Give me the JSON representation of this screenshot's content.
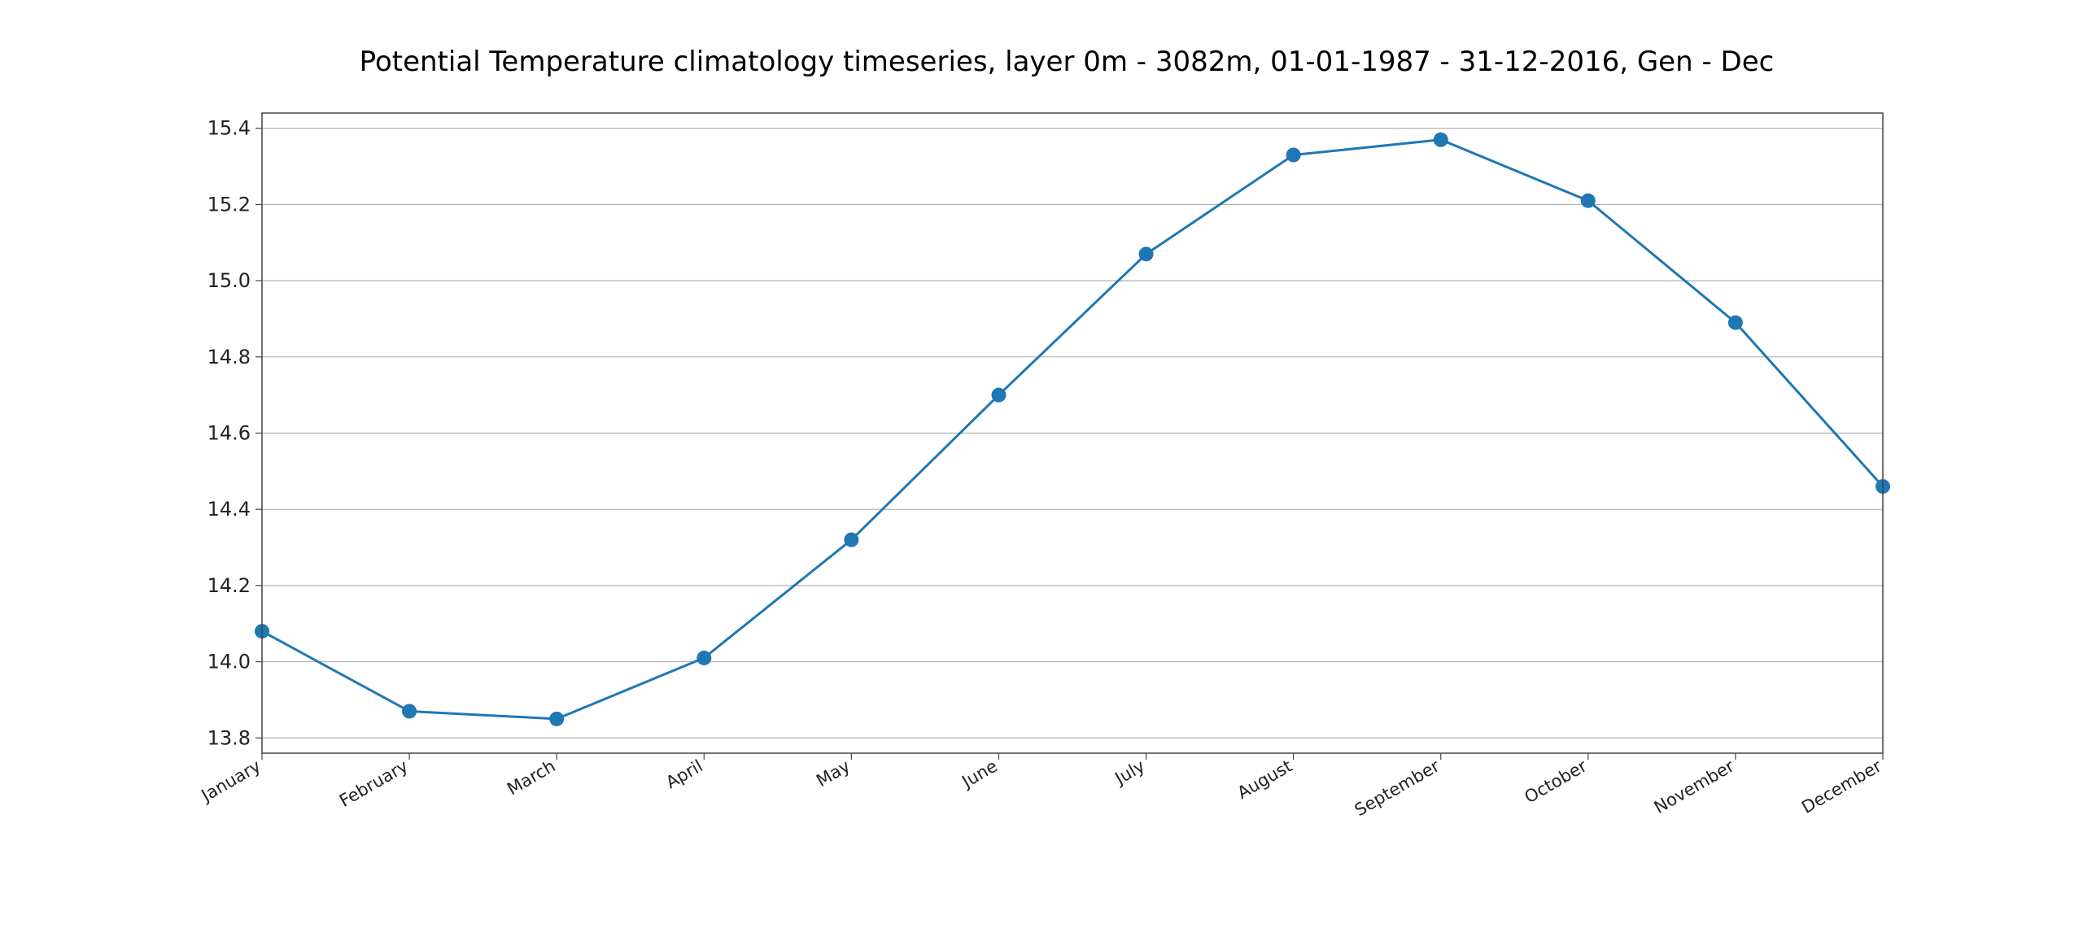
{
  "chart_data": {
    "type": "line",
    "title": "Potential Temperature climatology timeseries, layer 0m - 3082m, 01-01-1987 - 31-12-2016, Gen - Dec",
    "xlabel": "",
    "ylabel": "",
    "categories": [
      "January",
      "February",
      "March",
      "April",
      "May",
      "June",
      "July",
      "August",
      "September",
      "October",
      "November",
      "December"
    ],
    "series": [
      {
        "values": [
          14.08,
          13.87,
          13.85,
          14.01,
          14.32,
          14.7,
          15.07,
          15.33,
          15.37,
          15.21,
          14.89,
          14.46
        ]
      }
    ],
    "ylim": [
      13.76,
      15.44
    ],
    "yticks": [
      "13.8",
      "14.0",
      "14.2",
      "14.4",
      "14.6",
      "14.8",
      "15.0",
      "15.2",
      "15.4"
    ],
    "grid": "horizontal",
    "legend": "none",
    "colors": {
      "line": "#1f77b4",
      "grid": "#b0b0b0",
      "axes": "#444444"
    }
  }
}
